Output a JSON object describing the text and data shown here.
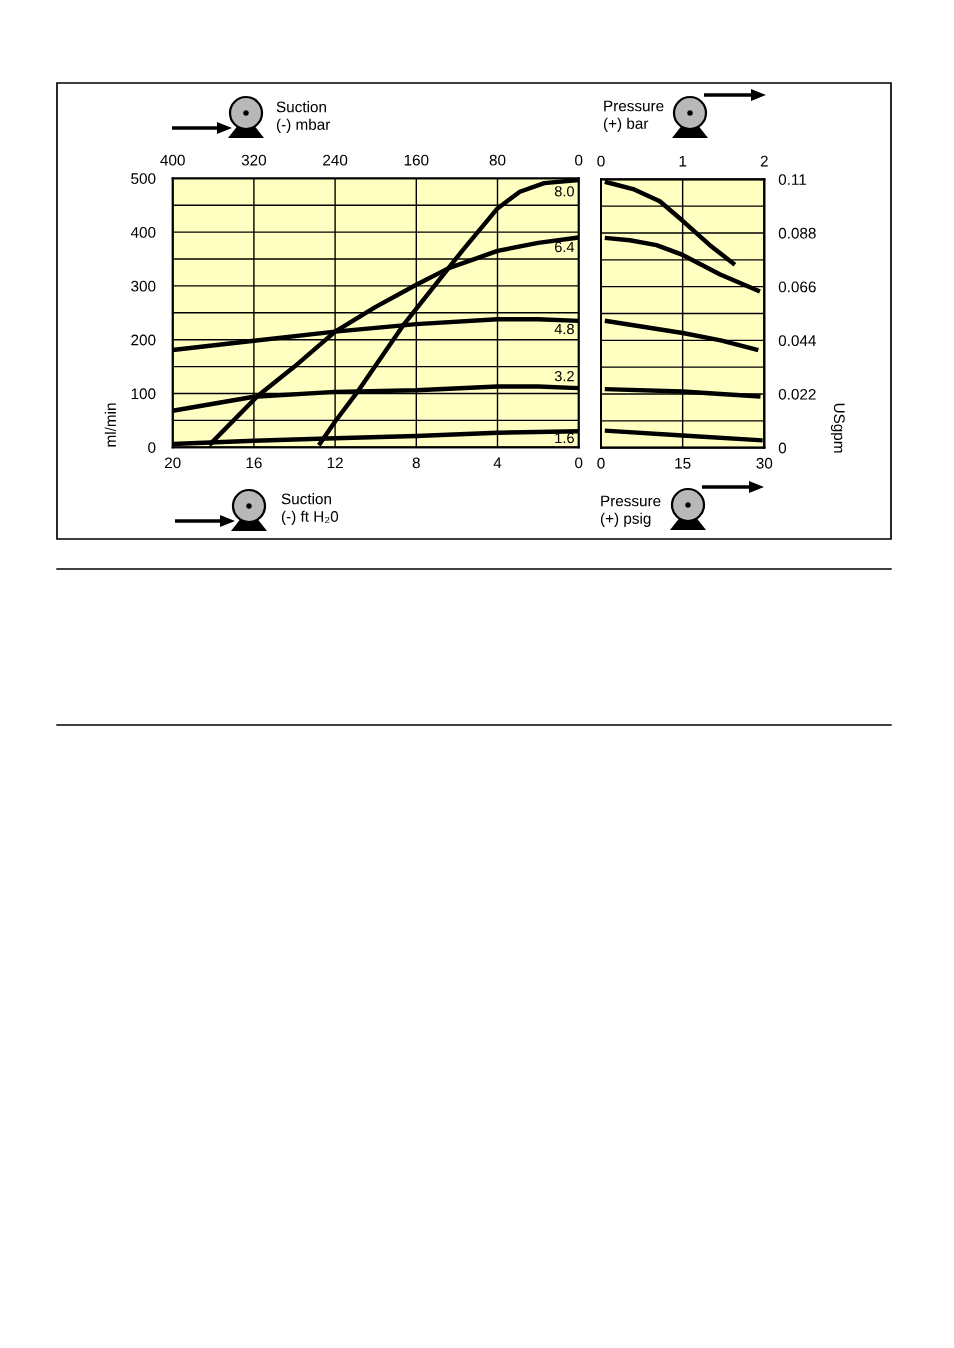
{
  "chart_data": [
    {
      "type": "line",
      "xlabel": "Suction\n(-) ft H₂0",
      "x2label": "Suction\n(-) mbar",
      "ylabel": "ml/min",
      "xlim": [
        20,
        0
      ],
      "xticks": [
        20,
        16,
        12,
        8,
        4,
        0
      ],
      "x2lim": [
        400,
        0
      ],
      "x2ticks": [
        400,
        320,
        240,
        160,
        80,
        0
      ],
      "ylim": [
        0,
        500
      ],
      "yticks": [
        0,
        {
          "value": 50,
          "label": null
        },
        100,
        {
          "value": 150,
          "label": null
        },
        200,
        {
          "value": 250,
          "label": null
        },
        300,
        {
          "value": 350,
          "label": null
        },
        400,
        {
          "value": 450,
          "label": null
        },
        500
      ],
      "grid": true,
      "series": [
        {
          "name": "8.0",
          "color": "#000000",
          "x": [
            12.8,
            12,
            10.9,
            8.6,
            5.7,
            4,
            2.9,
            1.7,
            0
          ],
          "values": [
            4,
            48,
            103,
            229,
            367,
            444,
            475,
            491,
            497
          ]
        },
        {
          "name": "6.4",
          "color": "#000000",
          "x": [
            18.2,
            15.8,
            14,
            12,
            10,
            8,
            6.4,
            4,
            2,
            0
          ],
          "values": [
            4,
            96,
            150,
            215,
            261,
            302,
            333,
            365,
            380,
            390
          ]
        },
        {
          "name": "4.8",
          "color": "#000000",
          "x": [
            20,
            16,
            12,
            8,
            4,
            2,
            0
          ],
          "values": [
            181,
            198,
            215,
            229,
            238,
            238,
            235
          ]
        },
        {
          "name": "3.2",
          "color": "#000000",
          "x": [
            20,
            16,
            12,
            8,
            4,
            2,
            0
          ],
          "values": [
            68,
            94,
            103,
            106,
            113,
            113,
            110
          ]
        },
        {
          "name": "1.6",
          "color": "#000000",
          "x": [
            20,
            16,
            12,
            8,
            4,
            0
          ],
          "values": [
            6,
            12,
            17,
            21,
            27,
            30
          ]
        }
      ]
    },
    {
      "type": "line",
      "xlabel": "Pressure\n(+) psig",
      "x2label": "Pressure\n(+) bar",
      "y2label": "USgpm",
      "xlim": [
        0,
        30
      ],
      "xticks": [
        0,
        15,
        30
      ],
      "x2lim": [
        0,
        2
      ],
      "x2ticks": [
        0,
        1,
        2
      ],
      "y2lim": [
        0,
        0.11
      ],
      "y2ticks": [
        0,
        {
          "value": 0.011,
          "label": null
        },
        0.022,
        {
          "value": 0.033,
          "label": null
        },
        0.044,
        {
          "value": 0.055,
          "label": null
        },
        0.066,
        {
          "value": 0.077,
          "label": null
        },
        0.088,
        {
          "value": 0.099,
          "label": null
        },
        0.11
      ],
      "grid": true,
      "series": [
        {
          "color": "#000000",
          "axis": "y2",
          "x": [
            0.7,
            5.9,
            10.8,
            15,
            20,
            24.6
          ],
          "values": [
            0.109,
            0.106,
            0.101,
            0.093,
            0.083,
            0.075
          ]
        },
        {
          "color": "#000000",
          "axis": "y2",
          "x": [
            0.7,
            5.3,
            10.2,
            15,
            21.9,
            29.2
          ],
          "values": [
            0.086,
            0.085,
            0.083,
            0.079,
            0.071,
            0.064
          ]
        },
        {
          "color": "#000000",
          "axis": "y2",
          "x": [
            0.7,
            15,
            22,
            28.9
          ],
          "values": [
            0.052,
            0.047,
            0.044,
            0.04
          ]
        },
        {
          "color": "#000000",
          "axis": "y2",
          "x": [
            0.7,
            15,
            22,
            29.3
          ],
          "values": [
            0.024,
            0.023,
            0.022,
            0.021
          ]
        },
        {
          "color": "#000000",
          "axis": "y2",
          "x": [
            0.7,
            15,
            29.7
          ],
          "values": [
            0.007,
            0.005,
            0.003
          ]
        }
      ]
    }
  ]
}
